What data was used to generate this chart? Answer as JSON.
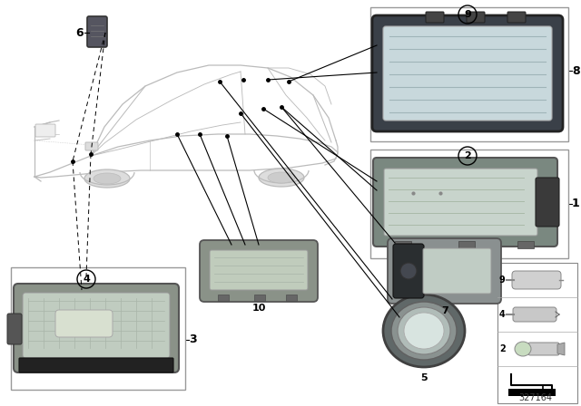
{
  "bg_color": "#ffffff",
  "part_number": "327164",
  "fig_w": 6.4,
  "fig_h": 4.48,
  "dpi": 100,
  "car_edge": "#bbbbbb",
  "car_lw": 0.9,
  "box_edge": "#999999",
  "lamp_gray": "#8a9288",
  "lamp_light": "#c8d0c0",
  "lamp_dark": "#4a4f55",
  "lamp_lens": "#d0dce0",
  "conn_dark": "#3a3a3a",
  "line_lw": 0.8,
  "dash_lw": 0.7
}
